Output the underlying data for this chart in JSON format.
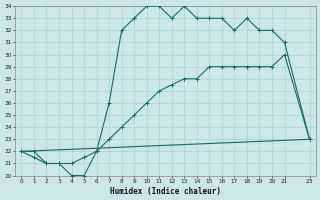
{
  "xlabel": "Humidex (Indice chaleur)",
  "bg_color": "#cce8e4",
  "line_color": "#1a6b5a",
  "grid_color": "#aad4ce",
  "xlim_min": -0.5,
  "xlim_max": 23.5,
  "ylim_min": 20,
  "ylim_max": 34,
  "xticks": [
    0,
    1,
    2,
    3,
    4,
    5,
    6,
    7,
    8,
    9,
    10,
    11,
    12,
    13,
    14,
    15,
    16,
    17,
    18,
    19,
    20,
    21,
    23
  ],
  "yticks": [
    20,
    21,
    22,
    23,
    24,
    25,
    26,
    27,
    28,
    29,
    30,
    31,
    32,
    33,
    34
  ],
  "line1_x": [
    0,
    1,
    2,
    3,
    4,
    5,
    6,
    7,
    8,
    9,
    10,
    11,
    12,
    13,
    14,
    15,
    16,
    17,
    18,
    19,
    20,
    21,
    23
  ],
  "line1_y": [
    22,
    22,
    21,
    21,
    20,
    20,
    22,
    26,
    32,
    33,
    34,
    34,
    33,
    34,
    33,
    33,
    33,
    32,
    33,
    32,
    32,
    31,
    23
  ],
  "line2_x": [
    0,
    1,
    2,
    3,
    4,
    5,
    6,
    7,
    8,
    9,
    10,
    11,
    12,
    13,
    14,
    15,
    16,
    17,
    18,
    19,
    20,
    21,
    23
  ],
  "line2_y": [
    22,
    21.5,
    21,
    21,
    21,
    21.5,
    22,
    23,
    24,
    25,
    26,
    27,
    27.5,
    28,
    28,
    29,
    29,
    29,
    29,
    29,
    29,
    30,
    23
  ],
  "line3_x": [
    0,
    23
  ],
  "line3_y": [
    22,
    23
  ]
}
